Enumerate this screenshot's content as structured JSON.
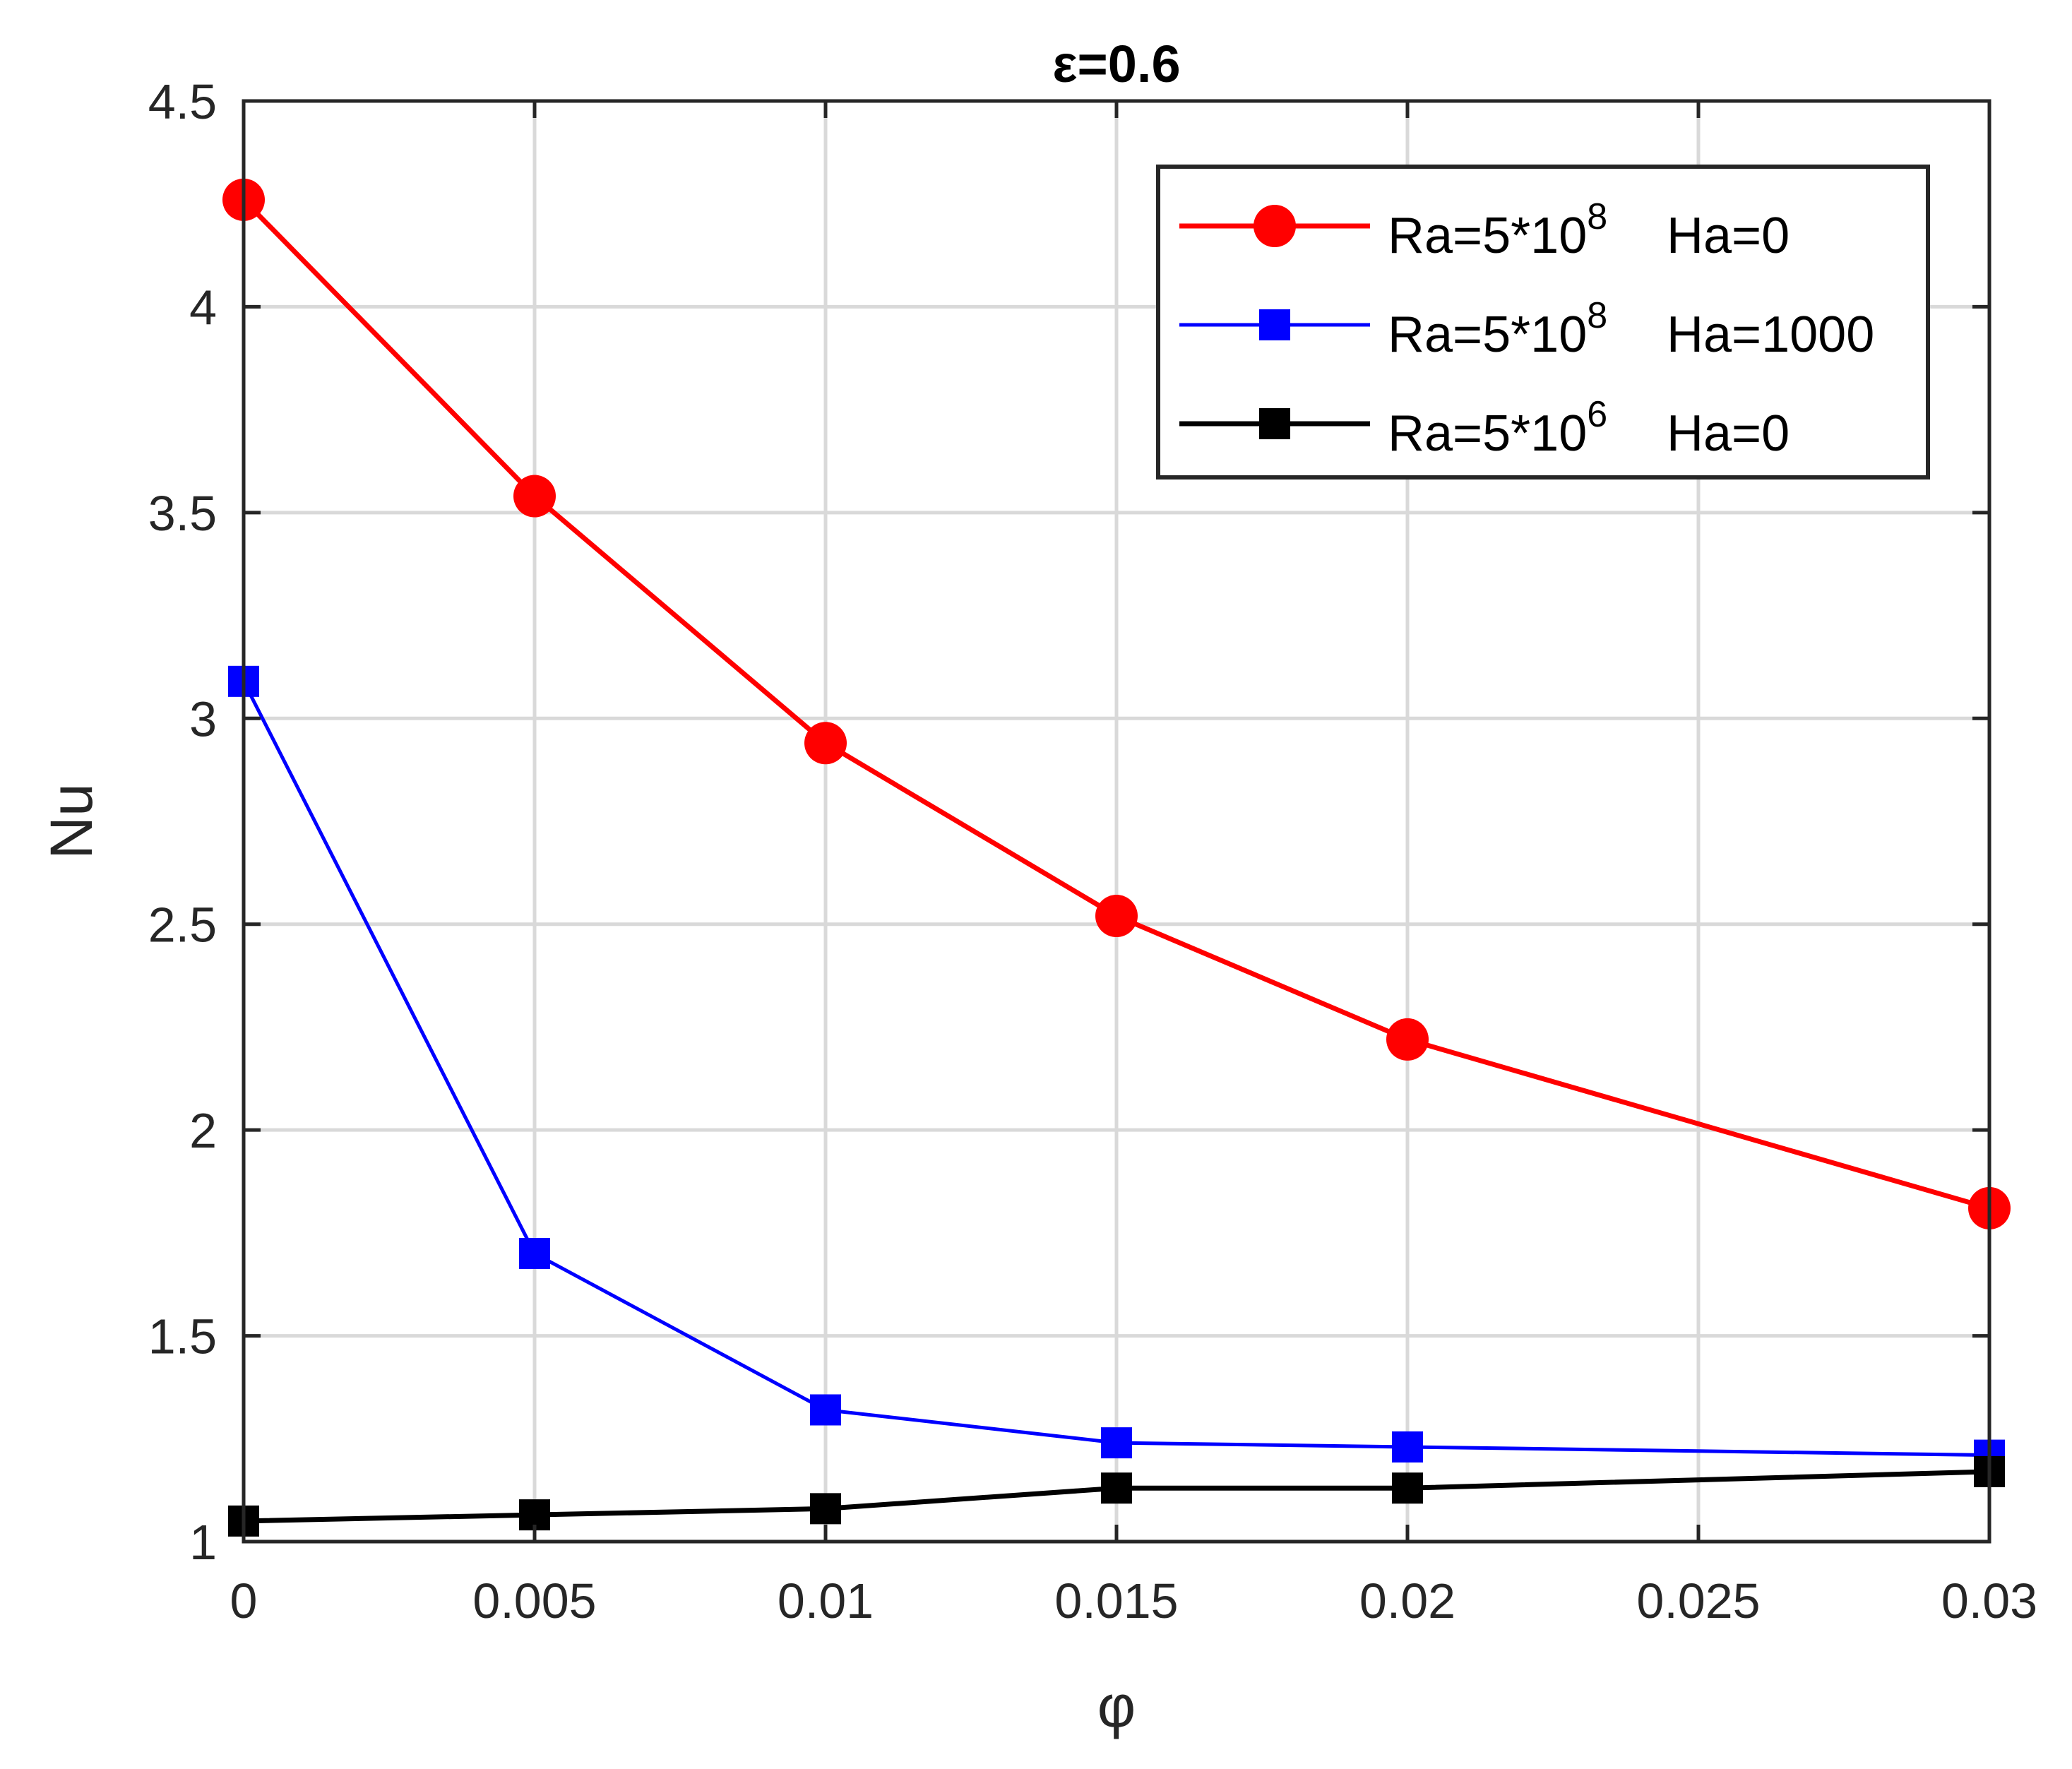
{
  "chart_data": {
    "type": "line",
    "title": "ε=0.6",
    "xlabel": "φ",
    "ylabel": "Nu",
    "xlim": [
      0,
      0.03
    ],
    "ylim": [
      1,
      4.5
    ],
    "xticks": [
      0,
      0.005,
      0.01,
      0.015,
      0.02,
      0.025,
      0.03
    ],
    "xtick_labels": [
      "0",
      "0.005",
      "0.01",
      "0.015",
      "0.02",
      "0.025",
      "0.03"
    ],
    "yticks": [
      1,
      1.5,
      2,
      2.5,
      3,
      3.5,
      4,
      4.5
    ],
    "ytick_labels": [
      "1",
      "1.5",
      "2",
      "2.5",
      "3",
      "3.5",
      "4",
      "4.5"
    ],
    "grid": true,
    "legend_position": "top-right",
    "x": [
      0,
      0.005,
      0.01,
      0.015,
      0.02,
      0.03
    ],
    "series": [
      {
        "name": "Ra=5*10^8  Ha=0",
        "legend_base": "Ra=5*10",
        "legend_exp": "8",
        "legend_tail": "Ha=0",
        "color": "#ff0000",
        "marker": "circle",
        "values": [
          4.26,
          3.54,
          2.94,
          2.52,
          2.22,
          1.81
        ]
      },
      {
        "name": "Ra=5*10^8  Ha=1000",
        "legend_base": "Ra=5*10",
        "legend_exp": "8",
        "legend_tail": "Ha=1000",
        "color": "#0000ff",
        "marker": "square",
        "values": [
          3.09,
          1.7,
          1.32,
          1.24,
          1.23,
          1.21
        ]
      },
      {
        "name": "Ra=5*10^6  Ha=0",
        "legend_base": "Ra=5*10",
        "legend_exp": "6",
        "legend_tail": "Ha=0",
        "color": "#000000",
        "marker": "square",
        "values": [
          1.05,
          1.065,
          1.08,
          1.13,
          1.13,
          1.17
        ]
      }
    ]
  }
}
